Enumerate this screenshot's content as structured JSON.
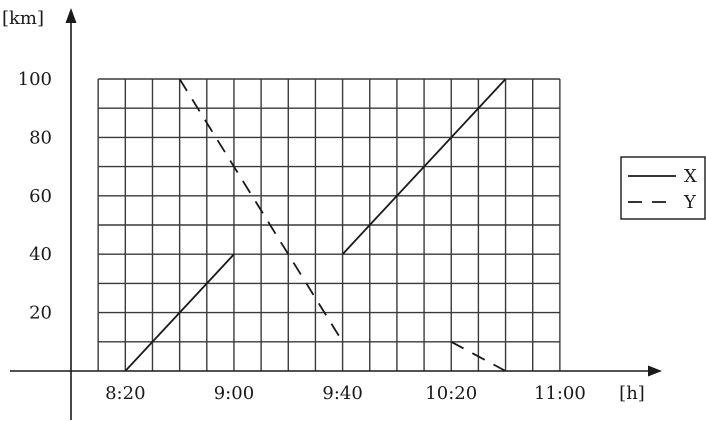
{
  "chart_data": {
    "type": "line",
    "xlabel": "[h]",
    "ylabel": "[km]",
    "x_unit": "time",
    "xlim": [
      "8:00",
      "11:00"
    ],
    "ylim": [
      0,
      100
    ],
    "x_ticks": [
      "8:20",
      "9:00",
      "9:40",
      "10:20",
      "11:00"
    ],
    "y_ticks": [
      20,
      40,
      60,
      80,
      100
    ],
    "grid": true,
    "grid_minor_minutes": 10,
    "grid_minor_km": 10,
    "legend_position": "right",
    "series": [
      {
        "name": "X",
        "style": "solid",
        "segments": [
          [
            [
              "8:20",
              0
            ],
            [
              "9:00",
              40
            ]
          ],
          [
            "9:40",
            40
          ],
          [
            "10:40",
            100
          ]
        ]
      },
      {
        "name": "Y",
        "style": "dashed",
        "segments": [
          [
            [
              "8:40",
              100
            ],
            [
              "9:40",
              10
            ]
          ],
          [
            [
              "10:20",
              10
            ],
            [
              "10:40",
              0
            ]
          ]
        ]
      }
    ]
  }
}
